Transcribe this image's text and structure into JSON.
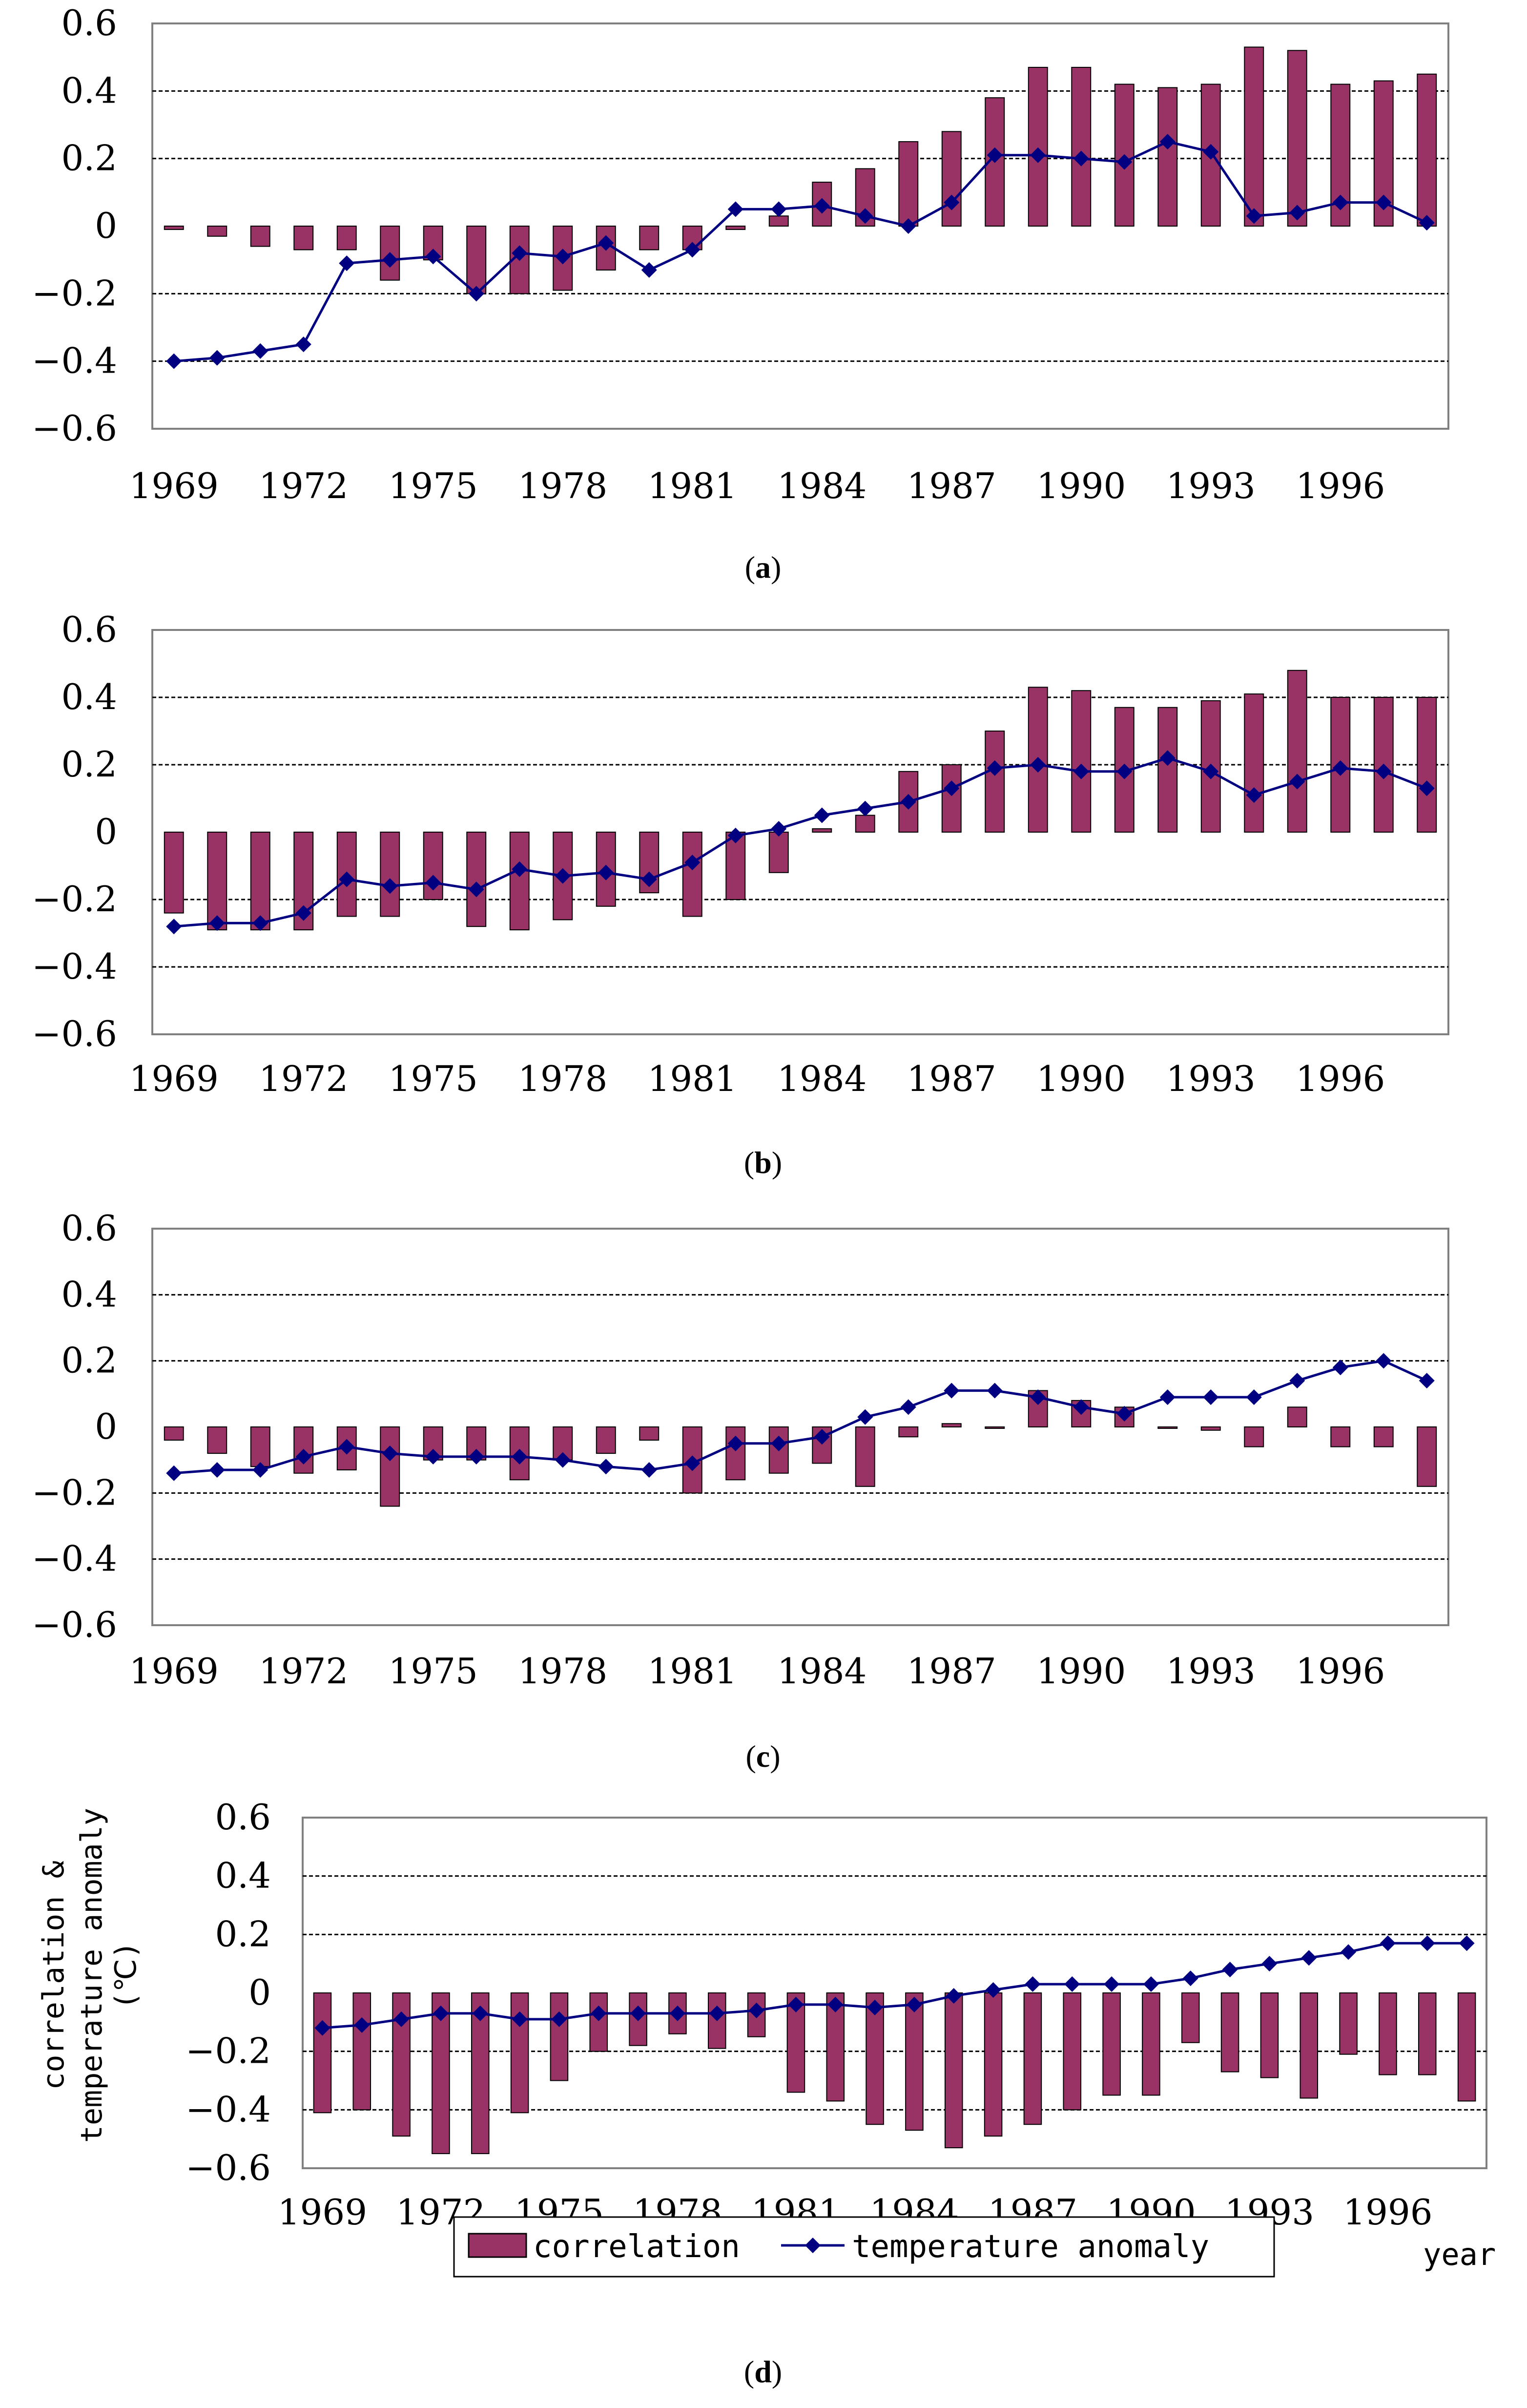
{
  "colors": {
    "bar_fill": "#993366",
    "bar_stroke": "#000000",
    "line": "#000080",
    "grid": "#000000",
    "frame": "#808080"
  },
  "legend": {
    "correlation": "correlation",
    "temperature": "temperature anomaly"
  },
  "axis_labels": {
    "y_line1": "correlation &",
    "y_line2": "temperature anomaly",
    "y_line3": "(℃)",
    "x": "year"
  },
  "chart_data": [
    {
      "type": "bar",
      "caption": "a",
      "categories": [
        1969,
        1970,
        1971,
        1972,
        1973,
        1974,
        1975,
        1976,
        1977,
        1978,
        1979,
        1980,
        1981,
        1982,
        1983,
        1984,
        1985,
        1986,
        1987,
        1988,
        1989,
        1990,
        1991,
        1992,
        1993,
        1994,
        1995,
        1996,
        1997,
        1998
      ],
      "x_tick_labels": [
        "1969",
        "1972",
        "1975",
        "1978",
        "1981",
        "1984",
        "1987",
        "1990",
        "1993",
        "1996"
      ],
      "y_tick_labels": [
        "0.6",
        "0.4",
        "0.2",
        "0",
        "-0.2",
        "-0.4",
        "-0.6"
      ],
      "ylim": [
        -0.6,
        0.6
      ],
      "gridlines": [
        0.4,
        0.2,
        -0.2,
        -0.4
      ],
      "series": [
        {
          "name": "correlation",
          "type": "bar",
          "values": [
            -0.01,
            -0.03,
            -0.06,
            -0.07,
            -0.07,
            -0.16,
            -0.1,
            -0.2,
            -0.2,
            -0.19,
            -0.13,
            -0.07,
            -0.07,
            -0.01,
            0.03,
            0.13,
            0.17,
            0.25,
            0.28,
            0.38,
            0.47,
            0.47,
            0.42,
            0.41,
            0.42,
            0.53,
            0.52,
            0.42,
            0.43,
            0.45
          ]
        },
        {
          "name": "temperature anomaly",
          "type": "line",
          "values": [
            -0.4,
            -0.39,
            -0.37,
            -0.35,
            -0.11,
            -0.1,
            -0.09,
            -0.2,
            -0.08,
            -0.09,
            -0.05,
            -0.13,
            -0.07,
            0.05,
            0.05,
            0.06,
            0.03,
            0.0,
            0.07,
            0.21,
            0.21,
            0.2,
            0.19,
            0.25,
            0.22,
            0.03,
            0.04,
            0.07,
            0.07,
            0.01
          ]
        }
      ]
    },
    {
      "type": "bar",
      "caption": "b",
      "categories": [
        1969,
        1970,
        1971,
        1972,
        1973,
        1974,
        1975,
        1976,
        1977,
        1978,
        1979,
        1980,
        1981,
        1982,
        1983,
        1984,
        1985,
        1986,
        1987,
        1988,
        1989,
        1990,
        1991,
        1992,
        1993,
        1994,
        1995,
        1996,
        1997,
        1998
      ],
      "x_tick_labels": [
        "1969",
        "1972",
        "1975",
        "1978",
        "1981",
        "1984",
        "1987",
        "1990",
        "1993",
        "1996"
      ],
      "y_tick_labels": [
        "0.6",
        "0.4",
        "0.2",
        "0",
        "-0.2",
        "-0.4",
        "-0.6"
      ],
      "ylim": [
        -0.6,
        0.6
      ],
      "gridlines": [
        0.4,
        0.2,
        -0.2,
        -0.4
      ],
      "series": [
        {
          "name": "correlation",
          "type": "bar",
          "values": [
            -0.24,
            -0.29,
            -0.29,
            -0.29,
            -0.25,
            -0.25,
            -0.2,
            -0.28,
            -0.29,
            -0.26,
            -0.22,
            -0.18,
            -0.25,
            -0.2,
            -0.12,
            0.01,
            0.05,
            0.18,
            0.2,
            0.3,
            0.43,
            0.42,
            0.37,
            0.37,
            0.39,
            0.41,
            0.48,
            0.4,
            0.4,
            0.4
          ]
        },
        {
          "name": "temperature anomaly",
          "type": "line",
          "values": [
            -0.28,
            -0.27,
            -0.27,
            -0.24,
            -0.14,
            -0.16,
            -0.15,
            -0.17,
            -0.11,
            -0.13,
            -0.12,
            -0.14,
            -0.09,
            -0.01,
            0.01,
            0.05,
            0.07,
            0.09,
            0.13,
            0.19,
            0.2,
            0.18,
            0.18,
            0.22,
            0.18,
            0.11,
            0.15,
            0.19,
            0.18,
            0.13
          ]
        }
      ]
    },
    {
      "type": "bar",
      "caption": "c",
      "categories": [
        1969,
        1970,
        1971,
        1972,
        1973,
        1974,
        1975,
        1976,
        1977,
        1978,
        1979,
        1980,
        1981,
        1982,
        1983,
        1984,
        1985,
        1986,
        1987,
        1988,
        1989,
        1990,
        1991,
        1992,
        1993,
        1994,
        1995,
        1996,
        1997,
        1998
      ],
      "x_tick_labels": [
        "1969",
        "1972",
        "1975",
        "1978",
        "1981",
        "1984",
        "1987",
        "1990",
        "1993",
        "1996"
      ],
      "y_tick_labels": [
        "0.6",
        "0.4",
        "0.2",
        "0",
        "-0.2",
        "-0.4",
        "-0.6"
      ],
      "ylim": [
        -0.6,
        0.6
      ],
      "gridlines": [
        0.4,
        0.2,
        -0.2,
        -0.4
      ],
      "series": [
        {
          "name": "correlation",
          "type": "bar",
          "values": [
            -0.04,
            -0.08,
            -0.12,
            -0.14,
            -0.13,
            -0.24,
            -0.1,
            -0.1,
            -0.16,
            -0.1,
            -0.08,
            -0.04,
            -0.2,
            -0.16,
            -0.14,
            -0.11,
            -0.18,
            -0.03,
            0.01,
            0.0,
            0.11,
            0.08,
            0.06,
            0.0,
            -0.01,
            -0.06,
            0.06,
            -0.06,
            -0.06,
            -0.18
          ]
        },
        {
          "name": "temperature anomaly",
          "type": "line",
          "values": [
            -0.14,
            -0.13,
            -0.13,
            -0.09,
            -0.06,
            -0.08,
            -0.09,
            -0.09,
            -0.09,
            -0.1,
            -0.12,
            -0.13,
            -0.11,
            -0.05,
            -0.05,
            -0.03,
            0.03,
            0.06,
            0.11,
            0.11,
            0.09,
            0.06,
            0.04,
            0.09,
            0.09,
            0.09,
            0.14,
            0.18,
            0.2,
            0.14
          ]
        }
      ]
    },
    {
      "type": "bar",
      "caption": "d",
      "categories": [
        1969,
        1970,
        1971,
        1972,
        1973,
        1974,
        1975,
        1976,
        1977,
        1978,
        1979,
        1980,
        1981,
        1982,
        1983,
        1984,
        1985,
        1986,
        1987,
        1988,
        1989,
        1990,
        1991,
        1992,
        1993,
        1994,
        1995,
        1996,
        1997,
        1998
      ],
      "x_tick_labels": [
        "1969",
        "1972",
        "1975",
        "1978",
        "1981",
        "1984",
        "1987",
        "1990",
        "1993",
        "1996"
      ],
      "y_tick_labels": [
        "0.6",
        "0.4",
        "0.2",
        "0",
        "-0.2",
        "-0.4",
        "-0.6"
      ],
      "ylim": [
        -0.6,
        0.6
      ],
      "gridlines": [
        0.4,
        0.2,
        -0.2,
        -0.4
      ],
      "xlabel": "year",
      "ylabel": "correlation & temperature anomaly (℃)",
      "legend_position": "bottom",
      "series": [
        {
          "name": "correlation",
          "type": "bar",
          "values": [
            -0.41,
            -0.4,
            -0.49,
            -0.55,
            -0.55,
            -0.41,
            -0.3,
            -0.2,
            -0.18,
            -0.14,
            -0.19,
            -0.15,
            -0.34,
            -0.37,
            -0.45,
            -0.47,
            -0.53,
            -0.49,
            -0.45,
            -0.4,
            -0.35,
            -0.35,
            -0.17,
            -0.27,
            -0.29,
            -0.36,
            -0.21,
            -0.28,
            -0.28,
            -0.37
          ]
        },
        {
          "name": "temperature anomaly",
          "type": "line",
          "values": [
            -0.12,
            -0.11,
            -0.09,
            -0.07,
            -0.07,
            -0.09,
            -0.09,
            -0.07,
            -0.07,
            -0.07,
            -0.07,
            -0.06,
            -0.04,
            -0.04,
            -0.05,
            -0.04,
            -0.01,
            0.01,
            0.03,
            0.03,
            0.03,
            0.03,
            0.05,
            0.08,
            0.1,
            0.12,
            0.14,
            0.17,
            0.17,
            0.17
          ]
        }
      ]
    }
  ]
}
